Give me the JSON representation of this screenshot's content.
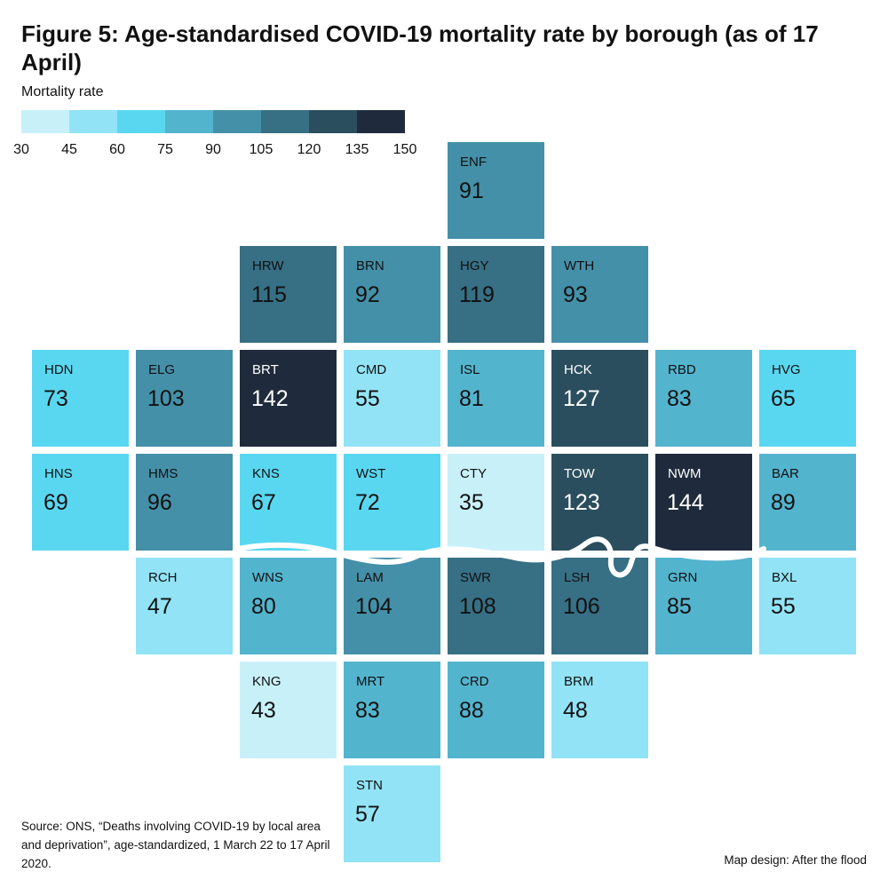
{
  "title": "Figure 5: Age-standardised COVID-19 mortality rate by borough (as of 17 April)",
  "legend": {
    "title": "Mortality rate",
    "breaks": [
      "30",
      "45",
      "60",
      "75",
      "90",
      "105",
      "120",
      "135",
      "150"
    ],
    "colors": [
      "#c8f0f9",
      "#92e3f5",
      "#5ad7f0",
      "#53b4ce",
      "#4490a8",
      "#376f84",
      "#2b4e5e",
      "#1f2b3c"
    ]
  },
  "chart_data": {
    "type": "heatmap",
    "title": "Figure 5: Age-standardised COVID-19 mortality rate by borough (as of 17 April)",
    "value_label": "Mortality rate",
    "scale_breaks": [
      30,
      45,
      60,
      75,
      90,
      105,
      120,
      135,
      150
    ],
    "boroughs": [
      {
        "code": "ENF",
        "value": 91,
        "row": 0,
        "col": 4
      },
      {
        "code": "HRW",
        "value": 115,
        "row": 1,
        "col": 2
      },
      {
        "code": "BRN",
        "value": 92,
        "row": 1,
        "col": 3
      },
      {
        "code": "HGY",
        "value": 119,
        "row": 1,
        "col": 4
      },
      {
        "code": "WTH",
        "value": 93,
        "row": 1,
        "col": 5
      },
      {
        "code": "HDN",
        "value": 73,
        "row": 2,
        "col": 0
      },
      {
        "code": "ELG",
        "value": 103,
        "row": 2,
        "col": 1
      },
      {
        "code": "BRT",
        "value": 142,
        "row": 2,
        "col": 2
      },
      {
        "code": "CMD",
        "value": 55,
        "row": 2,
        "col": 3
      },
      {
        "code": "ISL",
        "value": 81,
        "row": 2,
        "col": 4
      },
      {
        "code": "HCK",
        "value": 127,
        "row": 2,
        "col": 5
      },
      {
        "code": "RBD",
        "value": 83,
        "row": 2,
        "col": 6
      },
      {
        "code": "HVG",
        "value": 65,
        "row": 2,
        "col": 7
      },
      {
        "code": "HNS",
        "value": 69,
        "row": 3,
        "col": 0
      },
      {
        "code": "HMS",
        "value": 96,
        "row": 3,
        "col": 1
      },
      {
        "code": "KNS",
        "value": 67,
        "row": 3,
        "col": 2
      },
      {
        "code": "WST",
        "value": 72,
        "row": 3,
        "col": 3
      },
      {
        "code": "CTY",
        "value": 35,
        "row": 3,
        "col": 4
      },
      {
        "code": "TOW",
        "value": 123,
        "row": 3,
        "col": 5
      },
      {
        "code": "NWM",
        "value": 144,
        "row": 3,
        "col": 6
      },
      {
        "code": "BAR",
        "value": 89,
        "row": 3,
        "col": 7
      },
      {
        "code": "RCH",
        "value": 47,
        "row": 4,
        "col": 1
      },
      {
        "code": "WNS",
        "value": 80,
        "row": 4,
        "col": 2
      },
      {
        "code": "LAM",
        "value": 104,
        "row": 4,
        "col": 3
      },
      {
        "code": "SWR",
        "value": 108,
        "row": 4,
        "col": 4
      },
      {
        "code": "LSH",
        "value": 106,
        "row": 4,
        "col": 5
      },
      {
        "code": "GRN",
        "value": 85,
        "row": 4,
        "col": 6
      },
      {
        "code": "BXL",
        "value": 55,
        "row": 4,
        "col": 7
      },
      {
        "code": "KNG",
        "value": 43,
        "row": 5,
        "col": 2
      },
      {
        "code": "MRT",
        "value": 83,
        "row": 5,
        "col": 3
      },
      {
        "code": "CRD",
        "value": 88,
        "row": 5,
        "col": 4
      },
      {
        "code": "BRM",
        "value": 48,
        "row": 5,
        "col": 5
      },
      {
        "code": "STN",
        "value": 57,
        "row": 6,
        "col": 3
      }
    ],
    "annotations": [
      "River Thames line"
    ]
  },
  "source": "Source: ONS, “Deaths involving COVID-19 by local area and deprivation”, age-standardized, 1 March 22 to 17 April 2020.",
  "credit": "Map design: After the flood"
}
